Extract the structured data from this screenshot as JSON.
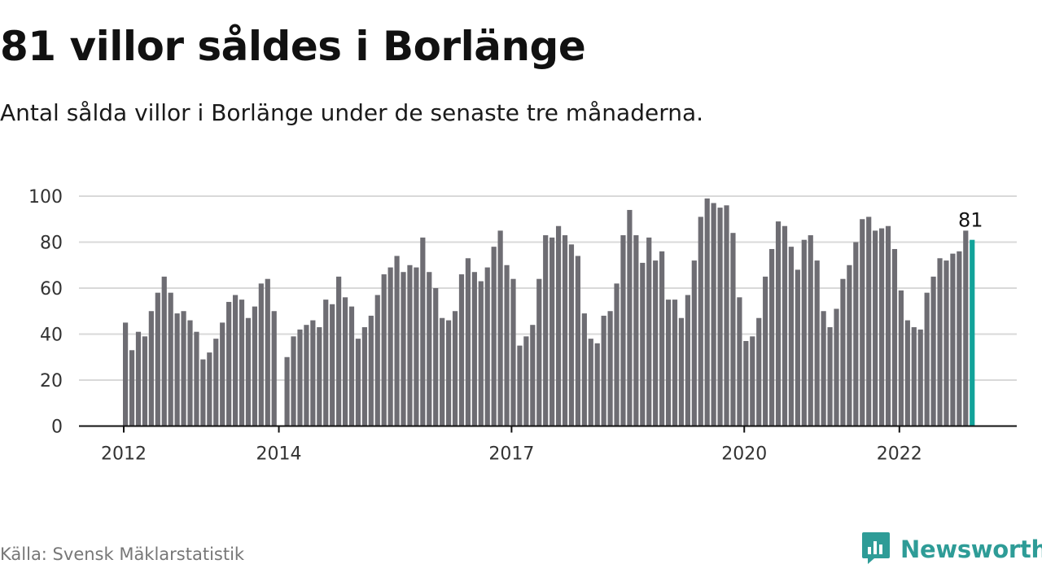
{
  "title": "81 villor såldes i Borlänge",
  "subtitle": "Antal sålda villor i Borlänge under de senaste tre månaderna.",
  "source": "Källa: Svensk Mäklarstatistik",
  "brand": {
    "name": "Newsworthy",
    "icon": "newsworthy-logo-icon",
    "color": "#2e9c97"
  },
  "chart_data": {
    "type": "bar",
    "grid": true,
    "ylim": [
      0,
      100
    ],
    "yticks": [
      "0",
      "20",
      "40",
      "60",
      "80",
      "100"
    ],
    "xtick_labels": [
      "2012",
      "2014",
      "2017",
      "2020",
      "2022"
    ],
    "colors": {
      "bar": "#6e6d73",
      "highlight": "#12a39a",
      "grid": "#d9d9d9",
      "axis": "#111111"
    },
    "highlight_label": "81",
    "values": [
      45,
      33,
      41,
      39,
      50,
      58,
      65,
      58,
      49,
      50,
      46,
      41,
      29,
      32,
      38,
      45,
      54,
      57,
      55,
      47,
      52,
      62,
      64,
      50,
      null,
      30,
      39,
      42,
      44,
      46,
      43,
      55,
      53,
      65,
      56,
      52,
      38,
      43,
      48,
      57,
      66,
      69,
      74,
      67,
      70,
      69,
      82,
      67,
      60,
      47,
      46,
      50,
      66,
      73,
      67,
      63,
      69,
      78,
      85,
      70,
      64,
      35,
      39,
      44,
      64,
      83,
      82,
      87,
      83,
      79,
      74,
      49,
      38,
      36,
      48,
      50,
      62,
      83,
      94,
      83,
      71,
      82,
      72,
      76,
      55,
      55,
      47,
      57,
      72,
      91,
      99,
      97,
      95,
      96,
      84,
      56,
      37,
      39,
      47,
      65,
      77,
      89,
      87,
      78,
      68,
      81,
      83,
      72,
      50,
      43,
      51,
      64,
      70,
      80,
      90,
      91,
      85,
      86,
      87,
      77,
      59,
      46,
      43,
      42,
      58,
      65,
      73,
      72,
      75,
      76,
      85,
      81
    ]
  }
}
